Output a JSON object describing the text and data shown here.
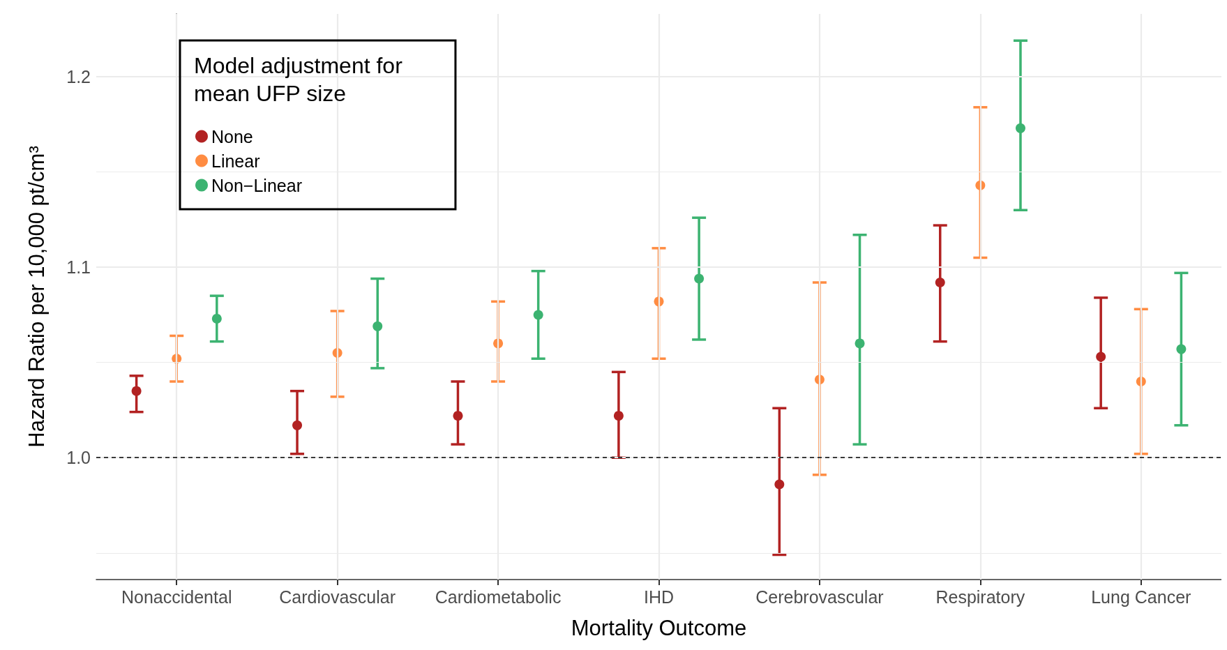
{
  "chart_data": {
    "type": "scatter",
    "xlabel": "Mortality Outcome",
    "ylabel": "Hazard Ratio per 10,000 pt/cm³",
    "legend_title": "Model adjustment for\nmean UFP size",
    "categories": [
      "Nonaccidental",
      "Cardiovascular",
      "Cardiometabolic",
      "IHD",
      "Cerebrovascular",
      "Respiratory",
      "Lung Cancer"
    ],
    "series": [
      {
        "name": "None",
        "color": "#b22222",
        "values": [
          1.035,
          1.017,
          1.022,
          1.022,
          0.986,
          1.092,
          1.053
        ],
        "errors": [
          [
            1.024,
            1.043
          ],
          [
            1.002,
            1.035
          ],
          [
            1.007,
            1.04
          ],
          [
            1.0,
            1.045
          ],
          [
            0.949,
            1.026
          ],
          [
            1.061,
            1.122
          ],
          [
            1.026,
            1.084
          ]
        ]
      },
      {
        "name": "Linear",
        "color": "#ff8c42",
        "values": [
          1.052,
          1.055,
          1.06,
          1.082,
          1.041,
          1.143,
          1.04
        ],
        "errors": [
          [
            1.04,
            1.064
          ],
          [
            1.032,
            1.077
          ],
          [
            1.04,
            1.082
          ],
          [
            1.052,
            1.11
          ],
          [
            0.991,
            1.092
          ],
          [
            1.105,
            1.184
          ],
          [
            1.002,
            1.078
          ]
        ]
      },
      {
        "name": "Non−Linear",
        "color": "#3cb371",
        "values": [
          1.073,
          1.069,
          1.075,
          1.094,
          1.06,
          1.173,
          1.057
        ],
        "errors": [
          [
            1.061,
            1.085
          ],
          [
            1.047,
            1.094
          ],
          [
            1.052,
            1.098
          ],
          [
            1.062,
            1.126
          ],
          [
            1.007,
            1.117
          ],
          [
            1.13,
            1.219
          ],
          [
            1.017,
            1.097
          ]
        ]
      }
    ],
    "ylim": [
      0.936,
      1.233
    ],
    "yticks": [
      {
        "value": 0.95,
        "label": null
      },
      {
        "value": 1.0,
        "label": "1.0"
      },
      {
        "value": 1.05,
        "label": null
      },
      {
        "value": 1.1,
        "label": "1.1"
      },
      {
        "value": 1.15,
        "label": null
      },
      {
        "value": 1.2,
        "label": "1.2"
      }
    ],
    "ref_lines": [
      {
        "axis": "y",
        "value": 1.0,
        "color": "#000000",
        "line_style": "dashed"
      }
    ],
    "grid": true,
    "legend": "top left",
    "marker": "circle"
  }
}
